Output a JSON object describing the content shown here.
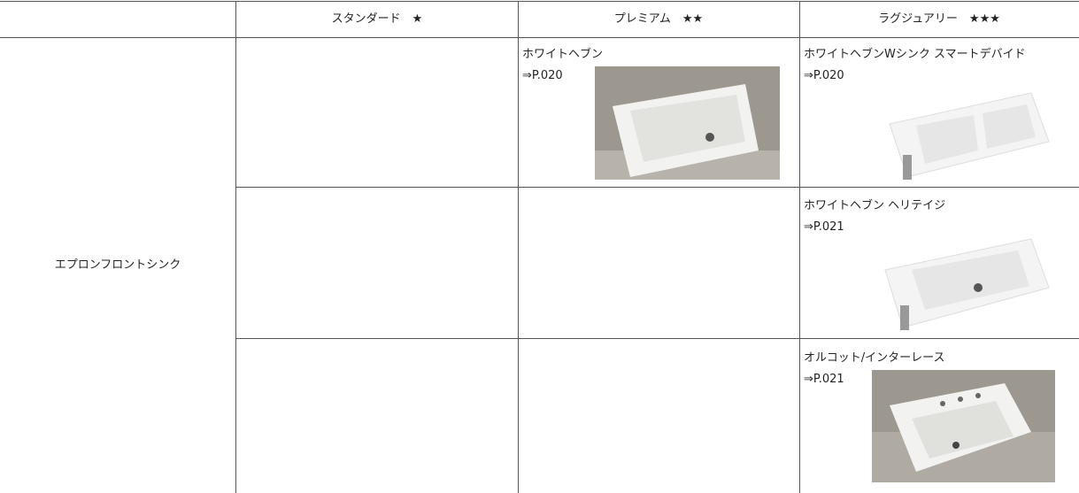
{
  "table": {
    "header": [
      "スタンダード　★",
      "プレミアム　★★",
      "ラグジュアリー　★★★"
    ],
    "row_label": "エプロンフロントシンク",
    "rows": [
      {
        "premium": {
          "name": "ホワイトヘブン",
          "ref": "⇒P.020"
        },
        "luxury": {
          "name": "ホワイトヘブンWシンク スマートデバイド",
          "ref": "⇒P.020"
        }
      },
      {
        "luxury": {
          "name": "ホワイトヘブン ヘリテイジ",
          "ref": "⇒P.021"
        }
      },
      {
        "luxury": {
          "name": "オルコット/インターレース",
          "ref": "⇒P.021"
        }
      }
    ]
  }
}
